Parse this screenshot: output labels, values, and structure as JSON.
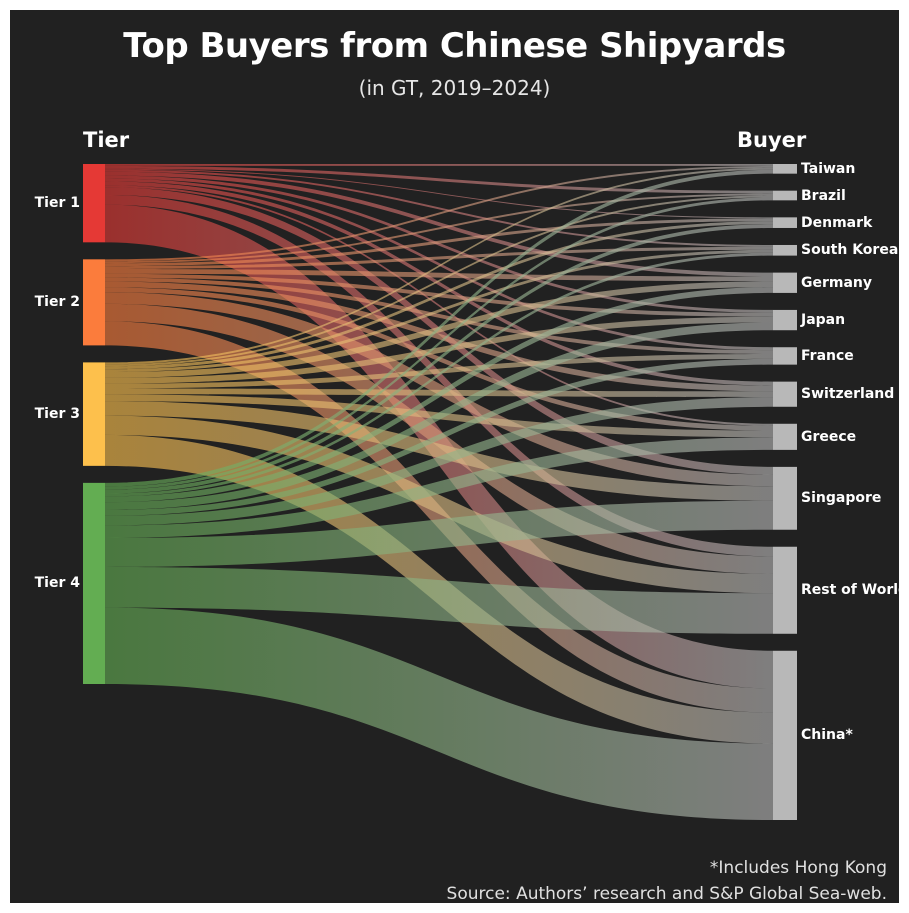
{
  "chart_data": {
    "type": "sankey",
    "title": "Top Buyers from Chinese Shipyards",
    "subtitle": "(in GT, 2019–2024)",
    "left_header": "Tier",
    "right_header": "Buyer",
    "sources": [
      {
        "name": "Tier 1",
        "color": "#e53935"
      },
      {
        "name": "Tier 2",
        "color": "#fb7c3c"
      },
      {
        "name": "Tier 3",
        "color": "#fdc04c"
      },
      {
        "name": "Tier 4",
        "color": "#63ad52"
      }
    ],
    "targets": [
      "Taiwan",
      "Brazil",
      "Denmark",
      "South Korea",
      "Germany",
      "Japan",
      "France",
      "Switzerland",
      "Greece",
      "Singapore",
      "Rest of World",
      "China*"
    ],
    "target_color": "#b8b8b8",
    "links": [
      [
        2,
        3,
        1,
        2,
        4,
        3,
        3,
        4,
        2,
        8,
        10,
        39
      ],
      [
        2,
        2,
        3,
        3,
        5,
        4,
        4,
        6,
        5,
        12,
        18,
        25
      ],
      [
        2,
        2,
        3,
        3,
        6,
        6,
        5,
        6,
        7,
        15,
        20,
        32
      ],
      [
        4,
        3,
        4,
        3,
        6,
        8,
        6,
        10,
        13,
        30,
        42,
        79
      ]
    ],
    "footnote": "*Includes Hong Kong",
    "source": "Source: Authors’ research and S&P Global Sea-web."
  }
}
